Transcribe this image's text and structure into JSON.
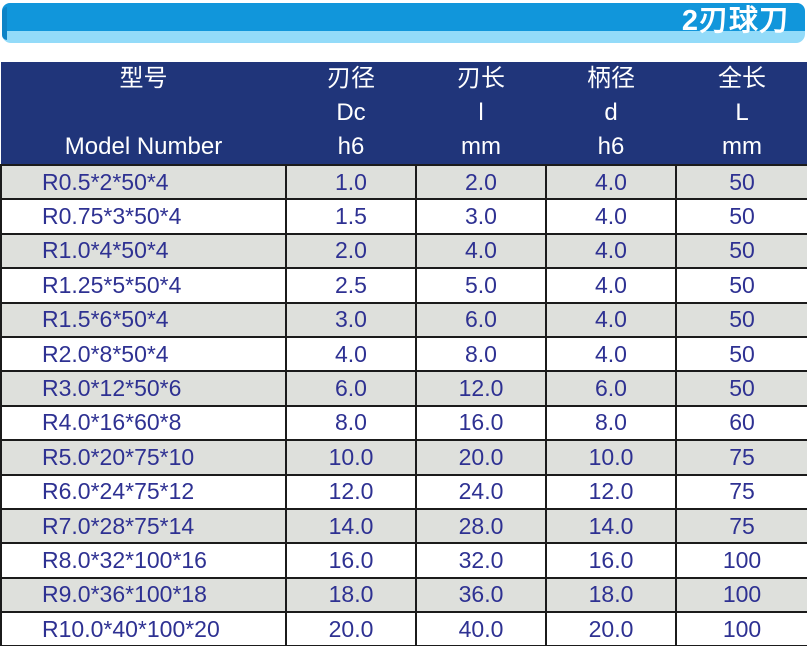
{
  "banner": {
    "title": "2刃球刀"
  },
  "colors": {
    "banner_blue": "#1196db",
    "banner_light_edge": "#93dbf9",
    "banner_dark_edge": "#0d83c6",
    "header_navy": "#20357a",
    "body_text_navy": "#2e3192",
    "row_gray": "#dee0dc",
    "row_white": "#ffffff",
    "grid_border": "#1b1b1b"
  },
  "table": {
    "columns": [
      {
        "zh": "型号",
        "sym": "",
        "unit": "",
        "en": "Model Number"
      },
      {
        "zh": "刃径",
        "sym": "Dc",
        "unit": "h6"
      },
      {
        "zh": "刃长",
        "sym": "l",
        "unit": "mm"
      },
      {
        "zh": "柄径",
        "sym": "d",
        "unit": "h6"
      },
      {
        "zh": "全长",
        "sym": "L",
        "unit": "mm"
      }
    ],
    "rows": [
      [
        "R0.5*2*50*4",
        "1.0",
        "2.0",
        "4.0",
        "50"
      ],
      [
        "R0.75*3*50*4",
        "1.5",
        "3.0",
        "4.0",
        "50"
      ],
      [
        "R1.0*4*50*4",
        "2.0",
        "4.0",
        "4.0",
        "50"
      ],
      [
        "R1.25*5*50*4",
        "2.5",
        "5.0",
        "4.0",
        "50"
      ],
      [
        "R1.5*6*50*4",
        "3.0",
        "6.0",
        "4.0",
        "50"
      ],
      [
        "R2.0*8*50*4",
        "4.0",
        "8.0",
        "4.0",
        "50"
      ],
      [
        "R3.0*12*50*6",
        "6.0",
        "12.0",
        "6.0",
        "50"
      ],
      [
        "R4.0*16*60*8",
        "8.0",
        "16.0",
        "8.0",
        "60"
      ],
      [
        "R5.0*20*75*10",
        "10.0",
        "20.0",
        "10.0",
        "75"
      ],
      [
        "R6.0*24*75*12",
        "12.0",
        "24.0",
        "12.0",
        "75"
      ],
      [
        "R7.0*28*75*14",
        "14.0",
        "28.0",
        "14.0",
        "75"
      ],
      [
        "R8.0*32*100*16",
        "16.0",
        "32.0",
        "16.0",
        "100"
      ],
      [
        "R9.0*36*100*18",
        "18.0",
        "36.0",
        "18.0",
        "100"
      ],
      [
        "R10.0*40*100*20",
        "20.0",
        "40.0",
        "20.0",
        "100"
      ]
    ]
  }
}
